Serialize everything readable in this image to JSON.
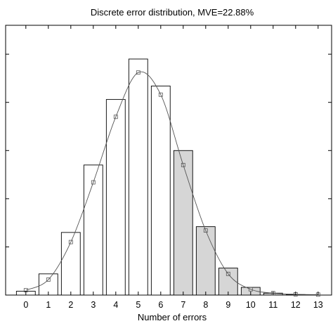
{
  "chart_data": {
    "type": "bar",
    "title": "Discrete error distribution, MVE=22.88%",
    "xlabel": "Number of errors",
    "ylabel": "",
    "categories": [
      "0",
      "1",
      "2",
      "3",
      "4",
      "5",
      "6",
      "7",
      "8",
      "9",
      "10",
      "11",
      "12",
      "13"
    ],
    "x": [
      0,
      1,
      2,
      3,
      4,
      5,
      6,
      7,
      8,
      9,
      10,
      11,
      12,
      13
    ],
    "values": [
      0.4,
      2.2,
      6.5,
      13.5,
      20.3,
      24.5,
      21.7,
      15.0,
      7.1,
      2.8,
      0.8,
      0.2,
      0.05,
      0.0
    ],
    "fit_curve": [
      0.5,
      1.6,
      5.5,
      11.7,
      18.5,
      23.1,
      20.8,
      13.5,
      6.7,
      2.2,
      0.6,
      0.2,
      0.08,
      0.05
    ],
    "shaded_from_x": 7,
    "bar_fill": "#ffffff",
    "shaded_fill": "#d6d6d6",
    "ylim": [
      0,
      28
    ],
    "xlim": [
      -0.9,
      13.6
    ],
    "y_ticks": [
      0,
      5,
      10,
      15,
      20,
      25
    ],
    "y_tick_labels_shown": false,
    "grid": false
  }
}
